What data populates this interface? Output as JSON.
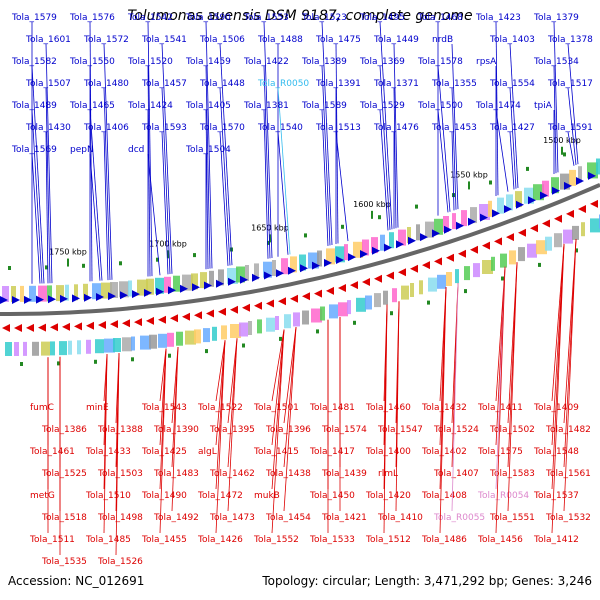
{
  "title": "Tolumonas auensis DSM 9187, complete genome",
  "accession": "Accession: NC_012691",
  "summary": "Topology: circular; Length: 3,471,292 bp; Genes: 3,246",
  "colors": {
    "forward": "#0000cc",
    "reverse": "#dd0000",
    "rna": "#33bbee",
    "rna_reverse": "#dd88cc",
    "backbone": "#666666",
    "tick": "#228822"
  },
  "scale_ticks": [
    "1750 kbp",
    "1700 kbp",
    "1650 kbp",
    "1600 kbp",
    "1550 kbp",
    "1500 kbp"
  ],
  "forward_labels": [
    "Tola_1579",
    "Tola_1576",
    "Tola_1542",
    "Tola_1590",
    "Tola_1553",
    "Tola_1523",
    "Tola_1495",
    "Tola_1468",
    "Tola_1423",
    "Tola_1379",
    "Tola_1601",
    "Tola_1572",
    "Tola_1541",
    "Tola_1506",
    "Tola_1488",
    "Tola_1475",
    "Tola_1449",
    "nrdB",
    "Tola_1403",
    "Tola_1378",
    "Tola_1582",
    "Tola_1550",
    "Tola_1520",
    "Tola_1459",
    "Tola_1422",
    "Tola_1389",
    "Tola_1369",
    "Tola_1578",
    "rpsA",
    "Tola_1534",
    "Tola_1507",
    "Tola_1480",
    "Tola_1457",
    "Tola_1448",
    "Tola_R0050",
    "Tola_1391",
    "Tola_1371",
    "Tola_1355",
    "Tola_1554",
    "Tola_1517",
    "Tola_1489",
    "Tola_1465",
    "Tola_1424",
    "Tola_1405",
    "Tola_1381",
    "Tola_1589",
    "Tola_1529",
    "Tola_1500",
    "Tola_1474",
    "tpiA",
    "Tola_1430",
    "Tola_1406",
    "Tola_1593",
    "Tola_1570",
    "Tola_1540",
    "Tola_1513",
    "Tola_1476",
    "Tola_1453",
    "Tola_1427",
    "Tola_1591",
    "Tola_1569",
    "pepN",
    "dcd",
    "Tola_1504"
  ],
  "reverse_labels": [
    "fumC",
    "minE",
    "Tola_1543",
    "Tola_1522",
    "Tola_1501",
    "Tola_1481",
    "Tola_1460",
    "Tola_1432",
    "Tola_1411",
    "Tola_1409",
    "Tola_1386",
    "Tola_1388",
    "Tola_1390",
    "Tola_1395",
    "Tola_1396",
    "Tola_1574",
    "Tola_1547",
    "Tola_1524",
    "Tola_1502",
    "Tola_1482",
    "Tola_1461",
    "Tola_1433",
    "Tola_1425",
    "algL",
    "Tola_1415",
    "Tola_1417",
    "Tola_1400",
    "Tola_1402",
    "Tola_1575",
    "Tola_1548",
    "Tola_1525",
    "Tola_1503",
    "Tola_1483",
    "Tola_1462",
    "Tola_1438",
    "Tola_1439",
    "rlmL",
    "Tola_1407",
    "Tola_1583",
    "Tola_1561",
    "metG",
    "Tola_1510",
    "Tola_1490",
    "Tola_1472",
    "mukB",
    "Tola_1450",
    "Tola_1420",
    "Tola_1408",
    "Tola_R0054",
    "Tola_1537",
    "Tola_1518",
    "Tola_1498",
    "Tola_1492",
    "Tola_1473",
    "Tola_1454",
    "Tola_1421",
    "Tola_1410",
    "Tola_R0055",
    "Tola_1551",
    "Tola_1532",
    "Tola_1511",
    "Tola_1485",
    "Tola_1455",
    "Tola_1426",
    "Tola_1552",
    "Tola_1533",
    "Tola_1512",
    "Tola_1486",
    "Tola_1456",
    "Tola_1412",
    "Tola_1535",
    "Tola_1526"
  ]
}
